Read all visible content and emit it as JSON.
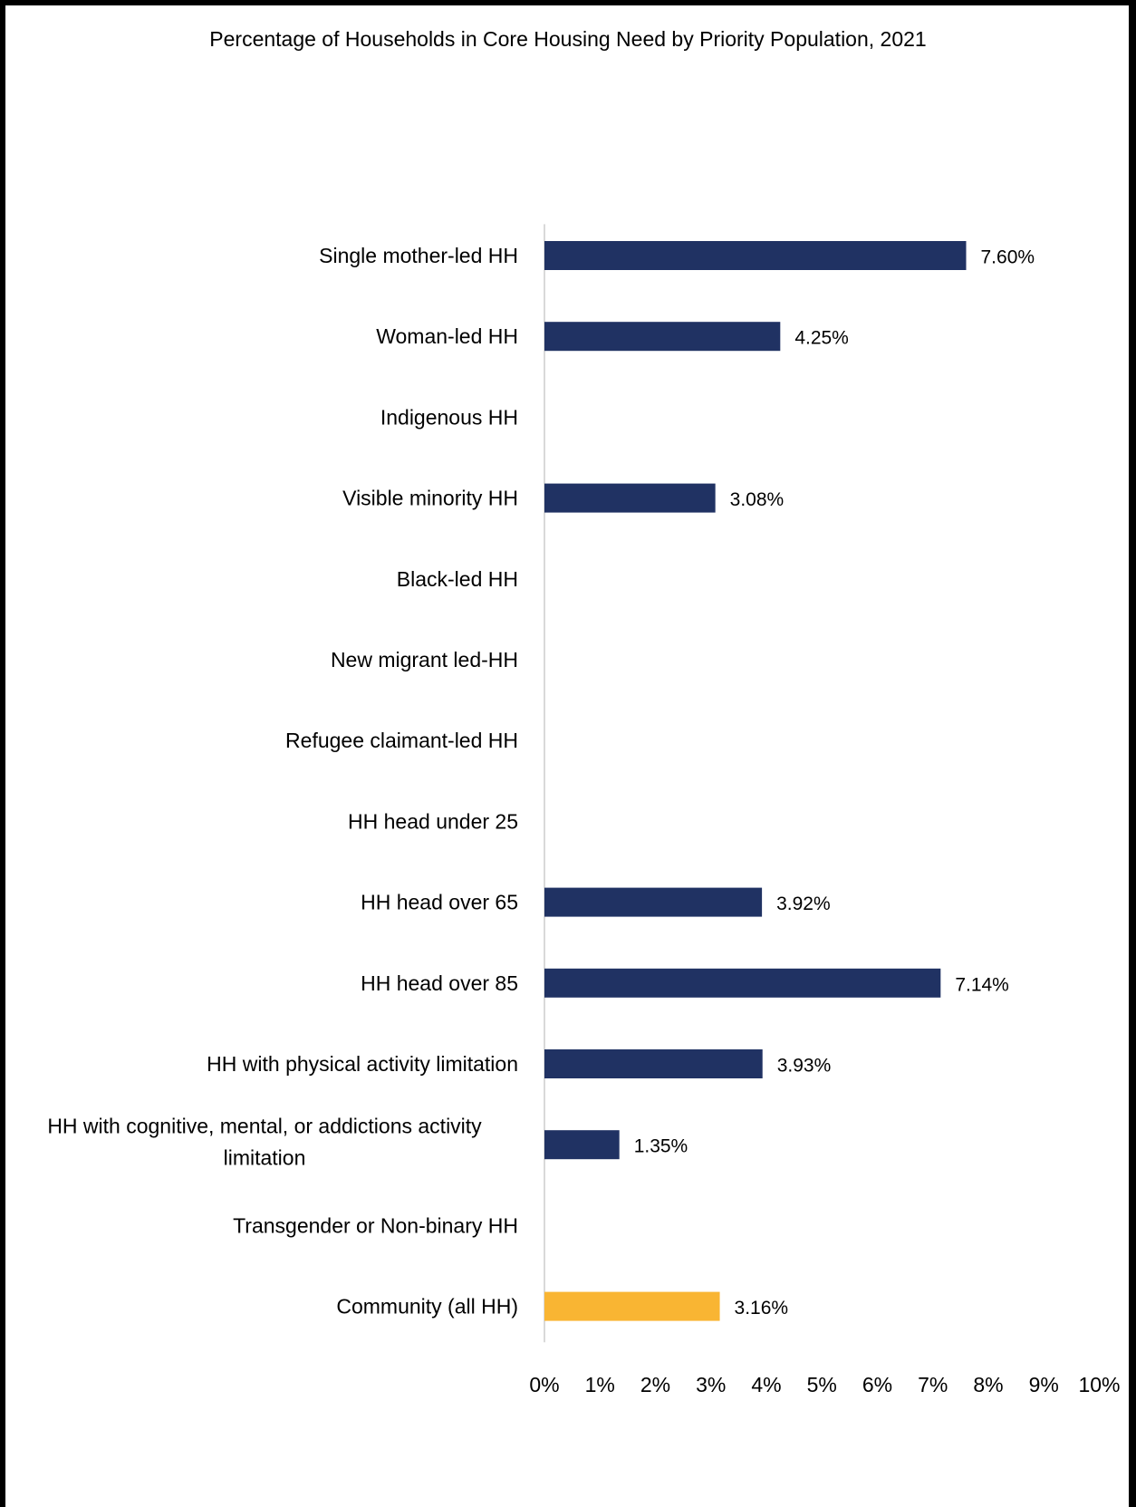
{
  "chart_data": {
    "type": "bar",
    "orientation": "horizontal",
    "title": "Percentage of Households in Core Housing Need by Priority Population, 2021",
    "xlabel": "",
    "ylabel": "",
    "xlim": [
      0,
      10
    ],
    "xticks": [
      "0%",
      "1%",
      "2%",
      "3%",
      "4%",
      "5%",
      "6%",
      "7%",
      "8%",
      "9%",
      "10%"
    ],
    "grid": false,
    "legend": "none",
    "categories": [
      [
        "Single mother-led HH"
      ],
      [
        "Woman-led HH"
      ],
      [
        "Indigenous HH"
      ],
      [
        "Visible minority HH"
      ],
      [
        "Black-led HH"
      ],
      [
        "New migrant led-HH"
      ],
      [
        "Refugee claimant-led HH"
      ],
      [
        "HH head under 25"
      ],
      [
        "HH head over 65"
      ],
      [
        "HH head over 85"
      ],
      [
        "HH with physical activity limitation"
      ],
      [
        "HH with cognitive, mental, or addictions activity",
        "limitation"
      ],
      [
        "Transgender or Non-binary HH"
      ],
      [
        "Community (all HH)"
      ]
    ],
    "values": [
      7.6,
      4.25,
      null,
      3.08,
      null,
      null,
      null,
      null,
      3.92,
      7.14,
      3.93,
      1.35,
      null,
      3.16
    ],
    "value_labels": [
      "7.60%",
      "4.25%",
      "",
      "3.08%",
      "",
      "",
      "",
      "",
      "3.92%",
      "7.14%",
      "3.93%",
      "1.35%",
      "",
      "3.16%"
    ],
    "highlight": [
      false,
      false,
      false,
      false,
      false,
      false,
      false,
      false,
      false,
      false,
      false,
      false,
      false,
      true
    ],
    "colors": {
      "bar": "#203263",
      "highlight": "#F9B533",
      "axis": "#D9D9D9"
    }
  }
}
